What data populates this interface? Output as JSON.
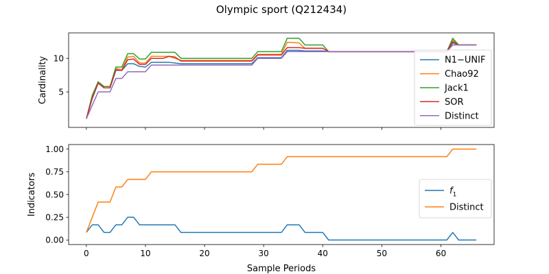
{
  "chart_data": {
    "title": "Olympic sport (Q212434)",
    "xlabel": "Sample Periods",
    "x_ticks": [
      0,
      10,
      20,
      30,
      40,
      50,
      60
    ],
    "xlim": [
      -3,
      69
    ],
    "panels": [
      {
        "type": "line",
        "ylabel": "Cardinality",
        "ylim": [
          -0.3,
          13.8
        ],
        "y_ticks": [
          5,
          10
        ],
        "y_tick_labels": [
          "5",
          "10"
        ],
        "legend_position": "right",
        "series": [
          {
            "name": "N1−UNIF",
            "color": "#1f77b4",
            "points": [
              [
                0,
                1
              ],
              [
                1,
                4
              ],
              [
                2,
                6.3
              ],
              [
                3,
                5.6
              ],
              [
                4,
                5.6
              ],
              [
                5,
                8.2
              ],
              [
                6,
                8.2
              ],
              [
                7,
                9.2
              ],
              [
                8,
                9.2
              ],
              [
                9,
                8.8
              ],
              [
                10,
                8.7
              ],
              [
                11,
                9.4
              ],
              [
                14,
                9.4
              ],
              [
                16,
                9.2
              ],
              [
                28,
                9.2
              ],
              [
                29,
                10.1
              ],
              [
                33,
                10.1
              ],
              [
                34,
                11.2
              ],
              [
                36,
                11.2
              ],
              [
                37,
                11.1
              ],
              [
                40,
                11.1
              ],
              [
                41,
                11
              ],
              [
                61,
                11
              ],
              [
                62,
                12.3
              ],
              [
                63,
                12
              ],
              [
                66,
                12
              ]
            ]
          },
          {
            "name": "Chao92",
            "color": "#ff7f0e",
            "points": [
              [
                0,
                1
              ],
              [
                1,
                4.3
              ],
              [
                2,
                6.5
              ],
              [
                3,
                5.8
              ],
              [
                4,
                5.8
              ],
              [
                5,
                8.5
              ],
              [
                6,
                8.3
              ],
              [
                7,
                10.2
              ],
              [
                8,
                10.3
              ],
              [
                9,
                9.3
              ],
              [
                10,
                9.3
              ],
              [
                11,
                10.3
              ],
              [
                14,
                10.3
              ],
              [
                16,
                9.7
              ],
              [
                28,
                9.7
              ],
              [
                29,
                10.6
              ],
              [
                33,
                10.6
              ],
              [
                34,
                12.4
              ],
              [
                36,
                12.3
              ],
              [
                37,
                11.5
              ],
              [
                40,
                11.5
              ],
              [
                41,
                11
              ],
              [
                61,
                11
              ],
              [
                62,
                12.7
              ],
              [
                63,
                12
              ],
              [
                66,
                12
              ]
            ]
          },
          {
            "name": "Jack1",
            "color": "#2ca02c",
            "points": [
              [
                0,
                1
              ],
              [
                1,
                4.5
              ],
              [
                2,
                6.5
              ],
              [
                3,
                5.8
              ],
              [
                4,
                5.8
              ],
              [
                5,
                8.7
              ],
              [
                6,
                8.7
              ],
              [
                7,
                10.7
              ],
              [
                8,
                10.7
              ],
              [
                9,
                9.9
              ],
              [
                10,
                9.9
              ],
              [
                11,
                10.9
              ],
              [
                15,
                10.9
              ],
              [
                16,
                10
              ],
              [
                28,
                10
              ],
              [
                29,
                11
              ],
              [
                33,
                11
              ],
              [
                34,
                13
              ],
              [
                36,
                13
              ],
              [
                37,
                12
              ],
              [
                40,
                12
              ],
              [
                41,
                11
              ],
              [
                61,
                11
              ],
              [
                62,
                13
              ],
              [
                63,
                12
              ],
              [
                66,
                12
              ]
            ]
          },
          {
            "name": "SOR",
            "color": "#d62728",
            "points": [
              [
                0,
                1
              ],
              [
                1,
                4.1
              ],
              [
                2,
                6.3
              ],
              [
                3,
                5.6
              ],
              [
                4,
                5.6
              ],
              [
                5,
                8.3
              ],
              [
                6,
                8.2
              ],
              [
                7,
                9.8
              ],
              [
                8,
                9.9
              ],
              [
                9,
                9.1
              ],
              [
                10,
                9.1
              ],
              [
                11,
                10
              ],
              [
                13,
                10
              ],
              [
                14,
                10.3
              ],
              [
                15,
                10.2
              ],
              [
                16,
                9.6
              ],
              [
                28,
                9.6
              ],
              [
                29,
                10.5
              ],
              [
                33,
                10.5
              ],
              [
                34,
                11.6
              ],
              [
                36,
                11.6
              ],
              [
                37,
                11.5
              ],
              [
                40,
                11.5
              ],
              [
                41,
                11
              ],
              [
                61,
                11
              ],
              [
                62,
                12.5
              ],
              [
                63,
                12
              ],
              [
                66,
                12
              ]
            ]
          },
          {
            "name": "Distinct",
            "color": "#9467bd",
            "points": [
              [
                0,
                1
              ],
              [
                1,
                3
              ],
              [
                2,
                5
              ],
              [
                3,
                5
              ],
              [
                4,
                5
              ],
              [
                5,
                7
              ],
              [
                6,
                7
              ],
              [
                7,
                8
              ],
              [
                8,
                8
              ],
              [
                9,
                8
              ],
              [
                10,
                8
              ],
              [
                11,
                9
              ],
              [
                28,
                9
              ],
              [
                29,
                10
              ],
              [
                33,
                10
              ],
              [
                34,
                11
              ],
              [
                61,
                11
              ],
              [
                62,
                12
              ],
              [
                66,
                12
              ]
            ]
          }
        ]
      },
      {
        "type": "line",
        "ylabel": "Indicators",
        "ylim": [
          -0.05,
          1.05
        ],
        "y_ticks": [
          0,
          0.25,
          0.5,
          0.75,
          1
        ],
        "y_tick_labels": [
          "0.00",
          "0.25",
          "0.50",
          "0.75",
          "1.00"
        ],
        "legend_position": "right",
        "series": [
          {
            "name": "f1",
            "name_base": "f",
            "name_sub": "1",
            "color": "#1f77b4",
            "points": [
              [
                0,
                0.083
              ],
              [
                1,
                0.167
              ],
              [
                2,
                0.167
              ],
              [
                3,
                0.083
              ],
              [
                4,
                0.083
              ],
              [
                5,
                0.167
              ],
              [
                6,
                0.167
              ],
              [
                7,
                0.25
              ],
              [
                8,
                0.25
              ],
              [
                9,
                0.167
              ],
              [
                15,
                0.167
              ],
              [
                16,
                0.083
              ],
              [
                33,
                0.083
              ],
              [
                34,
                0.167
              ],
              [
                36,
                0.167
              ],
              [
                37,
                0.083
              ],
              [
                40,
                0.083
              ],
              [
                41,
                0
              ],
              [
                61,
                0
              ],
              [
                62,
                0.083
              ],
              [
                63,
                0
              ],
              [
                66,
                0
              ]
            ]
          },
          {
            "name": "Distinct",
            "color": "#ff7f0e",
            "points": [
              [
                0,
                0.083
              ],
              [
                1,
                0.25
              ],
              [
                2,
                0.417
              ],
              [
                4,
                0.417
              ],
              [
                5,
                0.583
              ],
              [
                6,
                0.583
              ],
              [
                7,
                0.667
              ],
              [
                10,
                0.667
              ],
              [
                11,
                0.75
              ],
              [
                28,
                0.75
              ],
              [
                29,
                0.833
              ],
              [
                33,
                0.833
              ],
              [
                34,
                0.917
              ],
              [
                61,
                0.917
              ],
              [
                62,
                1
              ],
              [
                66,
                1
              ]
            ]
          }
        ]
      }
    ]
  }
}
